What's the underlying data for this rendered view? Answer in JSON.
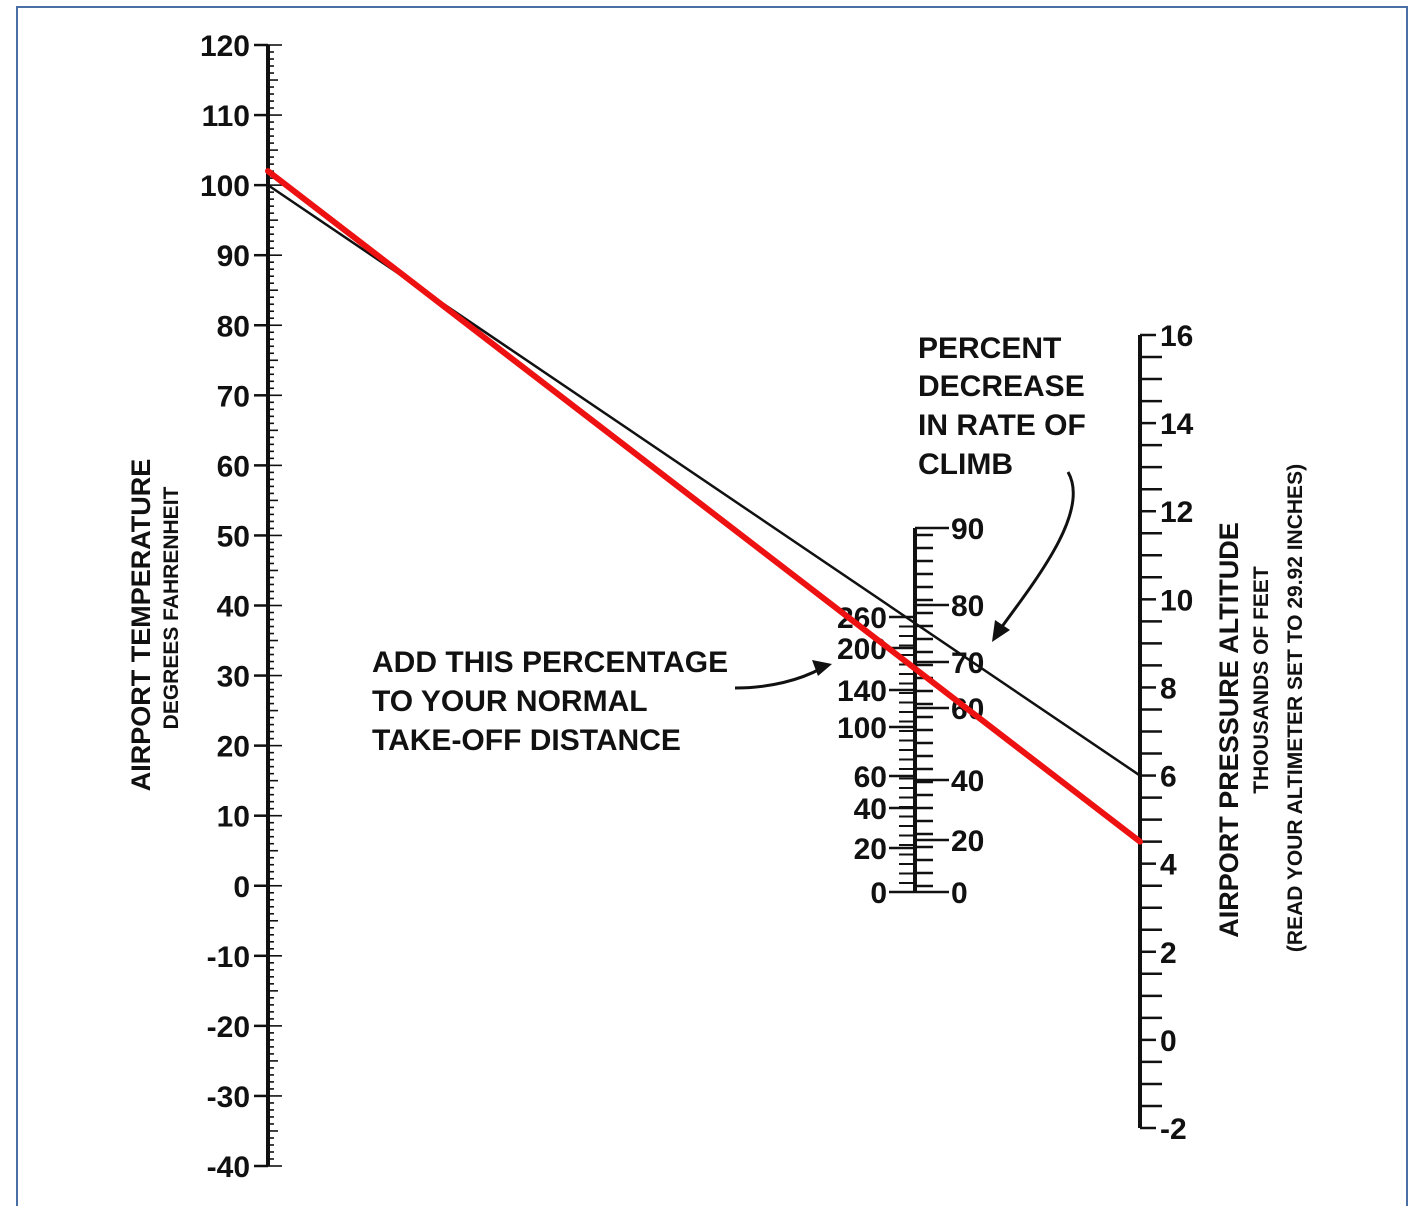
{
  "temperature_scale": {
    "title": "AIRPORT TEMPERATURE",
    "subtitle": "DEGREES FAHRENHEIT",
    "labels": [
      "120",
      "110",
      "100",
      "90",
      "80",
      "70",
      "60",
      "50",
      "40",
      "30",
      "20",
      "10",
      "0",
      "-10",
      "-20",
      "-30",
      "-40"
    ],
    "min": -40,
    "max": 120
  },
  "altitude_scale": {
    "title": "AIRPORT PRESSURE ALTITUDE",
    "subtitle": "THOUSANDS OF FEET",
    "note": "(READ YOUR ALTIMETER SET TO 29.92 INCHES)",
    "labels": [
      "16",
      "14",
      "12",
      "10",
      "8",
      "6",
      "4",
      "2",
      "0",
      "-2"
    ],
    "min": -2,
    "max": 16
  },
  "climb_scale": {
    "annotation_lines": [
      "PERCENT",
      "DECREASE",
      "IN RATE OF",
      "CLIMB"
    ],
    "labels": [
      "90",
      "80",
      "70",
      "60",
      "40",
      "20",
      "0"
    ]
  },
  "takeoff_scale": {
    "annotation_lines": [
      "ADD THIS PERCENTAGE",
      "TO YOUR NORMAL",
      "TAKE-OFF DISTANCE"
    ],
    "labels": [
      "260",
      "200",
      "140",
      "100",
      "60",
      "40",
      "20",
      "0"
    ]
  },
  "reference_lines": [
    {
      "color": "#111111",
      "temperature": 100,
      "altitude_kft": 6
    },
    {
      "color": "#ee1111",
      "temperature": 102,
      "altitude_kft": 4.5
    }
  ]
}
